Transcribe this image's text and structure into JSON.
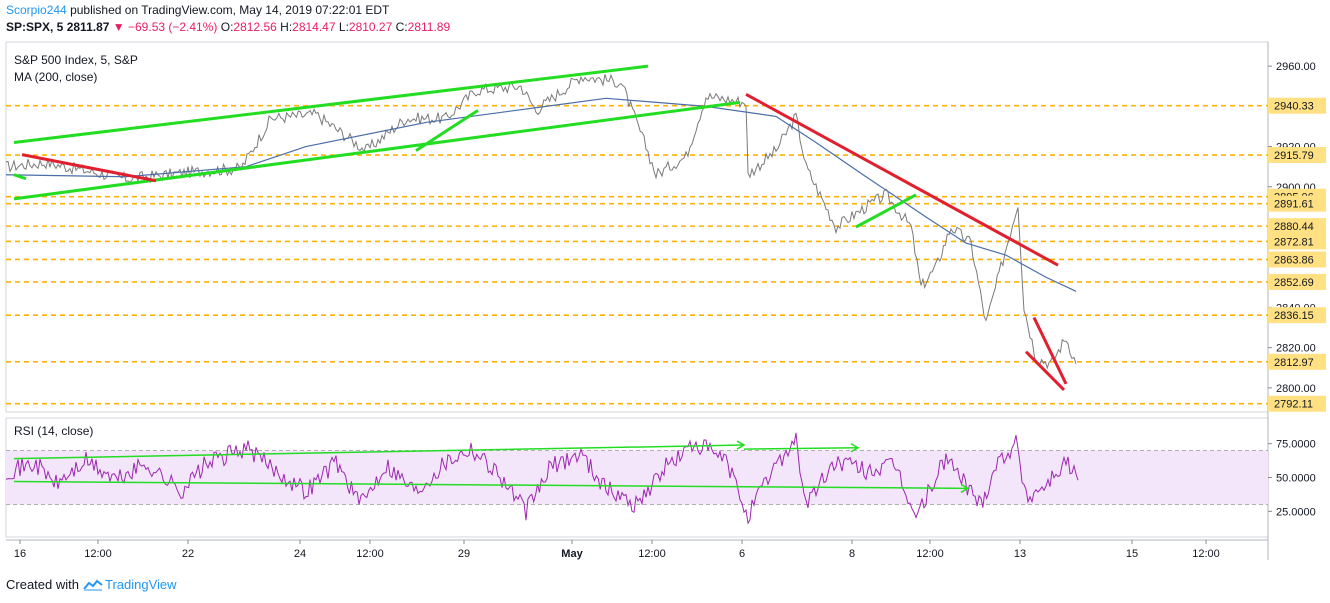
{
  "header": {
    "author": "Scorpio244",
    "published": "published on TradingView.com, May 14, 2019 07:22:01 EDT",
    "symbol": "SP:SPX, 5",
    "last": "2811.87",
    "arrow": "▼",
    "change": "−69.53 (−2.41%)",
    "o_label": "O:",
    "o": "2812.56",
    "h_label": "H:",
    "h": "2814.47",
    "l_label": "L:",
    "l": "2810.27",
    "c_label": "C:",
    "c": "2811.89"
  },
  "pane_main": {
    "title": "S&P 500 Index, 5, S&P",
    "indicator": "MA (200, close)"
  },
  "pane_rsi": {
    "title": "RSI (14, close)"
  },
  "footer": {
    "created_with": "Created with",
    "brand": "TradingView"
  },
  "colors": {
    "price": "#7a7a7a",
    "ma": "#4a6ea9",
    "support": "#ffb300",
    "green_trend": "#22dd22",
    "red_trend": "#e0202e",
    "rsi": "#9c27b0",
    "rsi_band": "#f3e6fa"
  },
  "chart_data": [
    {
      "type": "line",
      "title": "S&P 500 Index, 5, S&P",
      "x_ticks": [
        "16",
        "12:00",
        "22",
        "24",
        "12:00",
        "29",
        "May",
        "12:00",
        "6",
        "8",
        "12:00",
        "13",
        "15",
        "12:00"
      ],
      "y_ticks": [
        2800,
        2820,
        2840,
        2880,
        2900,
        2920,
        2960
      ],
      "ylim": [
        2788,
        2972
      ],
      "price_path": [
        [
          0,
          2910
        ],
        [
          40,
          2912
        ],
        [
          80,
          2908
        ],
        [
          120,
          2904
        ],
        [
          160,
          2906
        ],
        [
          200,
          2908
        ],
        [
          235,
          2909
        ],
        [
          265,
          2934
        ],
        [
          310,
          2936
        ],
        [
          360,
          2918
        ],
        [
          400,
          2934
        ],
        [
          440,
          2934
        ],
        [
          470,
          2948
        ],
        [
          515,
          2950
        ],
        [
          530,
          2938
        ],
        [
          575,
          2955
        ],
        [
          615,
          2952
        ],
        [
          640,
          2920
        ],
        [
          650,
          2906
        ],
        [
          680,
          2915
        ],
        [
          700,
          2945
        ],
        [
          740,
          2942
        ],
        [
          742,
          2906
        ],
        [
          770,
          2918
        ],
        [
          790,
          2935
        ],
        [
          800,
          2910
        ],
        [
          830,
          2880
        ],
        [
          860,
          2890
        ],
        [
          880,
          2896
        ],
        [
          905,
          2880
        ],
        [
          915,
          2850
        ],
        [
          930,
          2860
        ],
        [
          945,
          2880
        ],
        [
          965,
          2872
        ],
        [
          980,
          2832
        ],
        [
          995,
          2860
        ],
        [
          1012,
          2892
        ],
        [
          1018,
          2840
        ],
        [
          1030,
          2815
        ],
        [
          1045,
          2812
        ],
        [
          1060,
          2825
        ],
        [
          1070,
          2812
        ]
      ],
      "ma_path": [
        [
          0,
          2906
        ],
        [
          120,
          2905
        ],
        [
          240,
          2910
        ],
        [
          300,
          2920
        ],
        [
          420,
          2932
        ],
        [
          540,
          2940
        ],
        [
          600,
          2944
        ],
        [
          700,
          2940
        ],
        [
          770,
          2935
        ],
        [
          810,
          2922
        ],
        [
          860,
          2905
        ],
        [
          920,
          2885
        ],
        [
          960,
          2872
        ],
        [
          1000,
          2866
        ],
        [
          1040,
          2855
        ],
        [
          1070,
          2848
        ]
      ],
      "support_levels": [
        2940.33,
        2915.79,
        2895.06,
        2891.61,
        2880.44,
        2872.81,
        2863.86,
        2852.69,
        2836.15,
        2812.97,
        2792.11
      ],
      "support_labels": [
        "2940.33",
        "2915.79",
        "2895.06",
        "2891.61",
        "2880.44",
        "2872.81",
        "2863.86",
        "2852.69",
        "2836.15",
        "2812.97",
        "2792.11"
      ],
      "trendlines_green": [
        [
          [
            8,
            2922
          ],
          [
            642,
            2960
          ]
        ],
        [
          [
            8,
            2894
          ],
          [
            734,
            2942
          ]
        ],
        [
          [
            410,
            2918
          ],
          [
            472,
            2938
          ]
        ],
        [
          [
            850,
            2880
          ],
          [
            910,
            2896
          ]
        ],
        [
          [
            8,
            2906
          ],
          [
            20,
            2904
          ]
        ]
      ],
      "trendlines_red": [
        [
          [
            16,
            2916
          ],
          [
            150,
            2903
          ]
        ],
        [
          [
            740,
            2946
          ],
          [
            1052,
            2861
          ]
        ],
        [
          [
            1028,
            2835
          ],
          [
            1060,
            2802
          ]
        ],
        [
          [
            1020,
            2818
          ],
          [
            1058,
            2799
          ]
        ]
      ]
    },
    {
      "type": "line",
      "title": "RSI (14, close)",
      "y_ticks": [
        "75.0000",
        "50.0000",
        "25.0000"
      ],
      "y_values": [
        75,
        50,
        25
      ],
      "band": [
        30,
        70
      ],
      "ylim": [
        6,
        94
      ],
      "rsi_path": [
        [
          0,
          55
        ],
        [
          30,
          60
        ],
        [
          50,
          45
        ],
        [
          80,
          62
        ],
        [
          110,
          48
        ],
        [
          140,
          60
        ],
        [
          175,
          40
        ],
        [
          200,
          60
        ],
        [
          240,
          72
        ],
        [
          270,
          55
        ],
        [
          300,
          40
        ],
        [
          330,
          62
        ],
        [
          355,
          30
        ],
        [
          380,
          60
        ],
        [
          410,
          40
        ],
        [
          440,
          62
        ],
        [
          465,
          72
        ],
        [
          490,
          55
        ],
        [
          520,
          25
        ],
        [
          545,
          58
        ],
        [
          575,
          68
        ],
        [
          600,
          42
        ],
        [
          630,
          30
        ],
        [
          660,
          58
        ],
        [
          690,
          75
        ],
        [
          720,
          62
        ],
        [
          742,
          22
        ],
        [
          770,
          60
        ],
        [
          790,
          78
        ],
        [
          800,
          30
        ],
        [
          830,
          62
        ],
        [
          860,
          55
        ],
        [
          890,
          58
        ],
        [
          910,
          20
        ],
        [
          940,
          65
        ],
        [
          975,
          30
        ],
        [
          990,
          60
        ],
        [
          1010,
          76
        ],
        [
          1020,
          35
        ],
        [
          1040,
          45
        ],
        [
          1060,
          62
        ],
        [
          1072,
          48
        ]
      ],
      "green_lines": [
        [
          [
            8,
            64
          ],
          [
            738,
            74
          ]
        ],
        [
          [
            8,
            47
          ],
          [
            962,
            42
          ]
        ],
        [
          [
            738,
            71
          ],
          [
            852,
            72
          ]
        ]
      ]
    }
  ]
}
